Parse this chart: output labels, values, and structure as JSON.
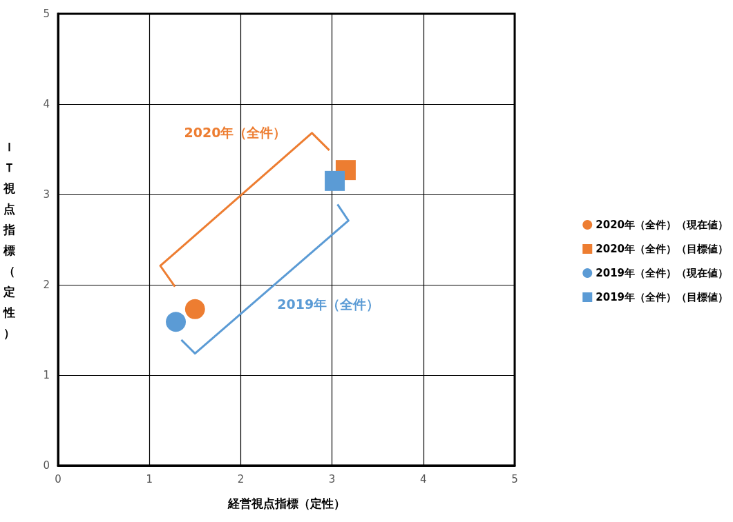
{
  "chart_data": {
    "type": "scatter",
    "xlabel": "経営視点指標（定性）",
    "ylabel": "ＩＴ視点指標（定性）",
    "xlim": [
      0,
      5
    ],
    "xticks": [
      0,
      1,
      2,
      3,
      4,
      5
    ],
    "ylim": [
      0,
      5
    ],
    "yticks": [
      0,
      1,
      2,
      3,
      4,
      5
    ],
    "grid": true,
    "legend": "right",
    "series": [
      {
        "name": "2020年（全件）（現在値）",
        "color": "#ed7d31",
        "marker": "circle",
        "x": [
          1.5
        ],
        "values": [
          1.73
        ]
      },
      {
        "name": "2020年（全件）（目標値）",
        "color": "#ed7d31",
        "marker": "square",
        "x": [
          3.15
        ],
        "values": [
          3.27
        ]
      },
      {
        "name": "2019年（全件）（現在値）",
        "color": "#5b9bd5",
        "marker": "circle",
        "x": [
          1.29
        ],
        "values": [
          1.59
        ]
      },
      {
        "name": "2019年（全件）（目標値）",
        "color": "#5b9bd5",
        "marker": "square",
        "x": [
          3.03
        ],
        "values": [
          3.15
        ]
      }
    ],
    "annotations": [
      "2020年（全件）",
      "2019年（全件）"
    ]
  }
}
